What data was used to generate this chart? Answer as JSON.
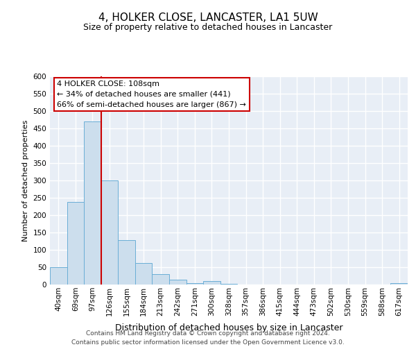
{
  "title": "4, HOLKER CLOSE, LANCASTER, LA1 5UW",
  "subtitle": "Size of property relative to detached houses in Lancaster",
  "xlabel": "Distribution of detached houses by size in Lancaster",
  "ylabel": "Number of detached properties",
  "bin_labels": [
    "40sqm",
    "69sqm",
    "97sqm",
    "126sqm",
    "155sqm",
    "184sqm",
    "213sqm",
    "242sqm",
    "271sqm",
    "300sqm",
    "328sqm",
    "357sqm",
    "386sqm",
    "415sqm",
    "444sqm",
    "473sqm",
    "502sqm",
    "530sqm",
    "559sqm",
    "588sqm",
    "617sqm"
  ],
  "bar_values": [
    50,
    238,
    470,
    300,
    128,
    62,
    30,
    15,
    5,
    10,
    2,
    0,
    0,
    0,
    0,
    0,
    0,
    0,
    0,
    0,
    5
  ],
  "bar_color": "#ccdeed",
  "bar_edgecolor": "#6aaed6",
  "ylim": [
    0,
    600
  ],
  "yticks": [
    0,
    50,
    100,
    150,
    200,
    250,
    300,
    350,
    400,
    450,
    500,
    550,
    600
  ],
  "property_line_bin_index": 2,
  "property_line_color": "#cc0000",
  "annotation_title": "4 HOLKER CLOSE: 108sqm",
  "annotation_line1": "← 34% of detached houses are smaller (441)",
  "annotation_line2": "66% of semi-detached houses are larger (867) →",
  "annotation_box_facecolor": "#ffffff",
  "annotation_box_edgecolor": "#cc0000",
  "footer_line1": "Contains HM Land Registry data © Crown copyright and database right 2024.",
  "footer_line2": "Contains public sector information licensed under the Open Government Licence v3.0.",
  "background_color": "#ffffff",
  "plot_background_color": "#e8eef6",
  "grid_color": "#ffffff",
  "title_fontsize": 11,
  "subtitle_fontsize": 9,
  "xlabel_fontsize": 9,
  "ylabel_fontsize": 8,
  "tick_fontsize": 7.5,
  "annotation_fontsize": 8,
  "footer_fontsize": 6.5
}
